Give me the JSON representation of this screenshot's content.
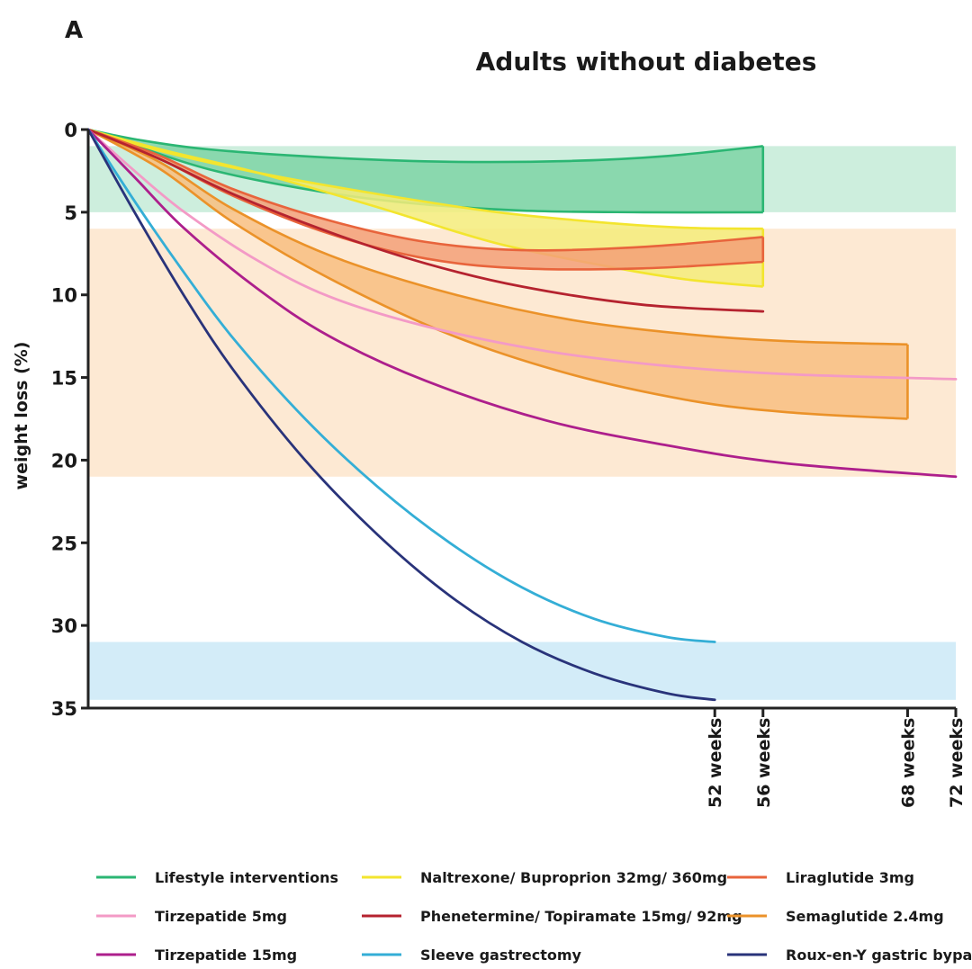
{
  "chart_data": {
    "type": "line",
    "panel_label": "A",
    "title": "Adults without diabetes",
    "xlabel": "",
    "ylabel": "weight loss (%)",
    "ylim": [
      0,
      35
    ],
    "yticks": [
      0,
      5,
      10,
      15,
      20,
      25,
      30,
      35
    ],
    "xlim": [
      0,
      72
    ],
    "xticks": [
      {
        "value": 52,
        "label": "52 weeks"
      },
      {
        "value": 56,
        "label": "56 weeks"
      },
      {
        "value": 68,
        "label": "68 weeks"
      },
      {
        "value": 72,
        "label": "72 weeks"
      }
    ],
    "background_bands": [
      {
        "name": "Lifestyle range",
        "y0": 1,
        "y1": 5,
        "color": "#cdeedd"
      },
      {
        "name": "Pharmacotherapy range",
        "y0": 6,
        "y1": 21,
        "color": "#fde9d3"
      },
      {
        "name": "Bariatric surgery range",
        "y0": 31,
        "y1": 34.5,
        "color": "#d3ecf8"
      }
    ],
    "ranges": [
      {
        "name": "Lifestyle interventions",
        "color": "#2bb673",
        "fill": "#7ed3a6",
        "x_end": 56,
        "upper": [
          [
            0,
            0
          ],
          [
            4,
            0.6
          ],
          [
            10,
            1.2
          ],
          [
            20,
            1.7
          ],
          [
            30,
            1.95
          ],
          [
            40,
            1.9
          ],
          [
            48,
            1.6
          ],
          [
            56,
            1.0
          ]
        ],
        "lower": [
          [
            0,
            0
          ],
          [
            4,
            1.0
          ],
          [
            10,
            2.4
          ],
          [
            18,
            3.6
          ],
          [
            26,
            4.4
          ],
          [
            36,
            4.9
          ],
          [
            46,
            5.0
          ],
          [
            56,
            5.0
          ]
        ]
      },
      {
        "name": "Naltrexone/ Buproprion 32mg/ 360mg",
        "color": "#f3e52e",
        "fill": "#f5ec7a",
        "x_end": 56,
        "upper": [
          [
            0,
            0
          ],
          [
            6,
            1.3
          ],
          [
            14,
            2.6
          ],
          [
            24,
            3.9
          ],
          [
            34,
            5.0
          ],
          [
            44,
            5.7
          ],
          [
            50,
            5.95
          ],
          [
            56,
            6.0
          ]
        ],
        "lower": [
          [
            0,
            0
          ],
          [
            6,
            1.2
          ],
          [
            14,
            2.6
          ],
          [
            24,
            4.7
          ],
          [
            34,
            6.9
          ],
          [
            44,
            8.4
          ],
          [
            50,
            9.1
          ],
          [
            56,
            9.5
          ]
        ]
      },
      {
        "name": "Liraglutide 3mg",
        "color": "#e8643c",
        "fill": "#f3a078",
        "x_end": 56,
        "upper": [
          [
            0,
            0
          ],
          [
            6,
            1.6
          ],
          [
            12,
            3.6
          ],
          [
            20,
            5.5
          ],
          [
            28,
            6.8
          ],
          [
            36,
            7.3
          ],
          [
            46,
            7.1
          ],
          [
            56,
            6.5
          ]
        ],
        "lower": [
          [
            0,
            0
          ],
          [
            6,
            1.8
          ],
          [
            12,
            4.0
          ],
          [
            20,
            6.3
          ],
          [
            28,
            7.8
          ],
          [
            36,
            8.4
          ],
          [
            46,
            8.4
          ],
          [
            56,
            8.0
          ]
        ]
      },
      {
        "name": "Semaglutide 2.4mg",
        "color": "#eb9229",
        "fill": "#f8be80",
        "x_end": 68,
        "upper": [
          [
            0,
            0
          ],
          [
            6,
            2.0
          ],
          [
            12,
            4.8
          ],
          [
            20,
            7.6
          ],
          [
            30,
            9.9
          ],
          [
            40,
            11.5
          ],
          [
            50,
            12.4
          ],
          [
            58,
            12.8
          ],
          [
            68,
            13.0
          ]
        ],
        "lower": [
          [
            0,
            0
          ],
          [
            6,
            2.4
          ],
          [
            12,
            5.6
          ],
          [
            20,
            9.0
          ],
          [
            30,
            12.4
          ],
          [
            40,
            14.8
          ],
          [
            50,
            16.4
          ],
          [
            58,
            17.1
          ],
          [
            68,
            17.5
          ]
        ]
      }
    ],
    "series": [
      {
        "name": "Phenetermine/ Topiramate 15mg/ 92mg",
        "color": "#b5232f",
        "x_end": 56,
        "points": [
          [
            0,
            0
          ],
          [
            6,
            1.8
          ],
          [
            12,
            3.9
          ],
          [
            20,
            6.2
          ],
          [
            28,
            8.1
          ],
          [
            36,
            9.5
          ],
          [
            46,
            10.6
          ],
          [
            56,
            11.0
          ]
        ]
      },
      {
        "name": "Tirzepatide 5mg",
        "color": "#f39ac6",
        "x_end": 72,
        "points": [
          [
            0,
            0
          ],
          [
            4,
            2.6
          ],
          [
            8,
            5.0
          ],
          [
            14,
            7.9
          ],
          [
            20,
            10.1
          ],
          [
            28,
            11.9
          ],
          [
            38,
            13.4
          ],
          [
            48,
            14.3
          ],
          [
            58,
            14.8
          ],
          [
            72,
            15.1
          ]
        ]
      },
      {
        "name": "Tirzepatide 15mg",
        "color": "#ad1f8c",
        "x_end": 72,
        "points": [
          [
            0,
            0
          ],
          [
            4,
            3.0
          ],
          [
            8,
            6.0
          ],
          [
            14,
            9.6
          ],
          [
            20,
            12.5
          ],
          [
            28,
            15.2
          ],
          [
            38,
            17.6
          ],
          [
            48,
            19.1
          ],
          [
            58,
            20.2
          ],
          [
            72,
            21.0
          ]
        ]
      },
      {
        "name": "Sleeve gastrectomy",
        "color": "#34aed6",
        "x_end": 52,
        "points": [
          [
            0,
            0
          ],
          [
            4,
            4.5
          ],
          [
            8,
            8.7
          ],
          [
            12,
            12.6
          ],
          [
            18,
            17.5
          ],
          [
            24,
            21.6
          ],
          [
            30,
            25.0
          ],
          [
            36,
            27.7
          ],
          [
            42,
            29.6
          ],
          [
            48,
            30.7
          ],
          [
            52,
            31.0
          ]
        ]
      },
      {
        "name": "Roux-en-Y gastric bypass",
        "color": "#29337a",
        "x_end": 52,
        "points": [
          [
            0,
            0
          ],
          [
            4,
            5.2
          ],
          [
            8,
            10.1
          ],
          [
            12,
            14.5
          ],
          [
            18,
            20.0
          ],
          [
            24,
            24.5
          ],
          [
            30,
            28.2
          ],
          [
            36,
            31.0
          ],
          [
            42,
            32.9
          ],
          [
            48,
            34.1
          ],
          [
            52,
            34.5
          ]
        ]
      }
    ],
    "legend": [
      {
        "label": "Lifestyle interventions",
        "color": "#2bb673"
      },
      {
        "label": "Naltrexone/ Buproprion 32mg/ 360mg",
        "color": "#f3e52e"
      },
      {
        "label": "Liraglutide 3mg",
        "color": "#e8643c"
      },
      {
        "label": "Tirzepatide 5mg",
        "color": "#f39ac6"
      },
      {
        "label": "Phenetermine/ Topiramate 15mg/ 92mg",
        "color": "#b5232f"
      },
      {
        "label": "Semaglutide 2.4mg",
        "color": "#eb9229"
      },
      {
        "label": "Tirzepatide 15mg",
        "color": "#ad1f8c"
      },
      {
        "label": "Sleeve gastrectomy",
        "color": "#34aed6"
      },
      {
        "label": "Roux-en-Y gastric bypass",
        "color": "#29337a"
      }
    ],
    "legend_position": "bottom"
  }
}
